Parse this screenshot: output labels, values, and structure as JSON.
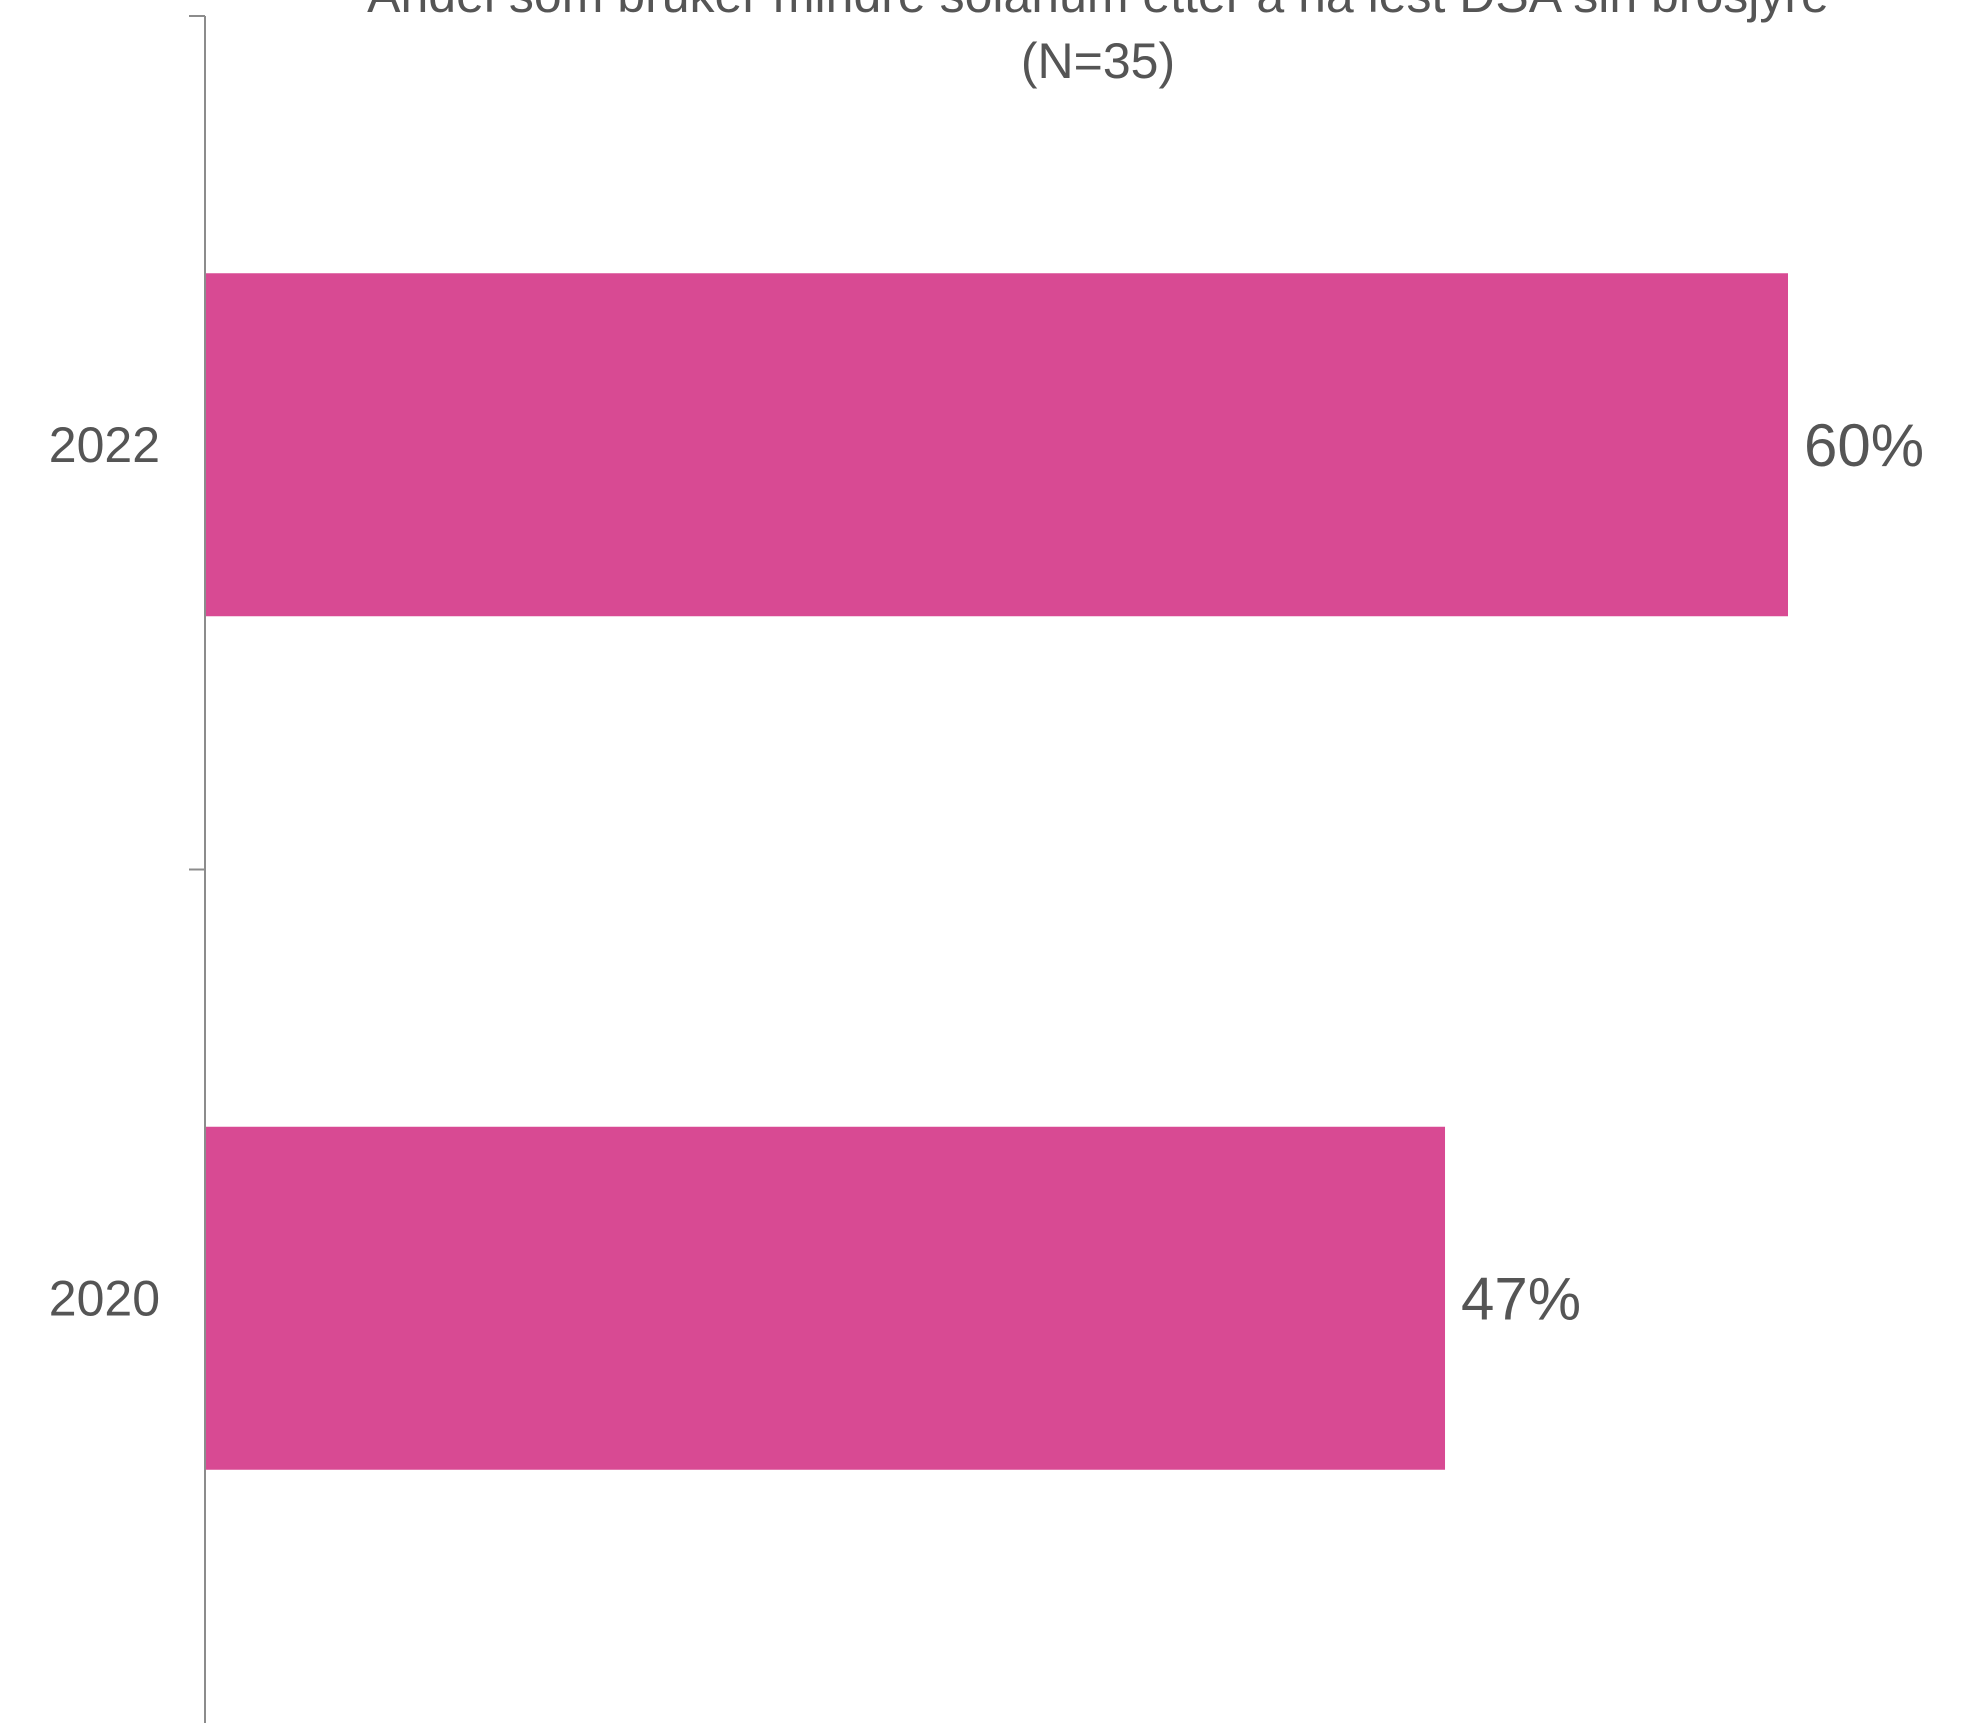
{
  "chart_data": {
    "type": "bar",
    "orientation": "horizontal",
    "title": "Andel som bruker mindre solarium etter å ha lest DSA sin brosjyre",
    "subtitle": "(N=35)",
    "xlabel": "",
    "ylabel": "",
    "categories": [
      "2022",
      "2020"
    ],
    "values": [
      60,
      47
    ],
    "value_labels": [
      "60%",
      "47%"
    ],
    "unit": "%",
    "xlim": [
      0,
      71
    ],
    "grid": false,
    "legend": "none",
    "colors": {
      "bar": "#d84a93",
      "text": "#555555",
      "axis": "#8c8c8c"
    }
  }
}
